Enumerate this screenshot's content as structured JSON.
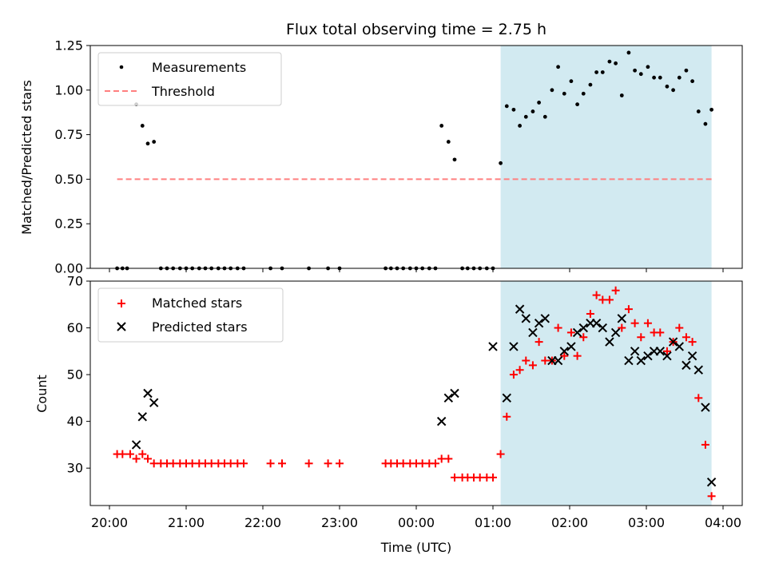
{
  "title": "Flux total observing time = 2.75 h",
  "colors": {
    "measurements": "#000000",
    "threshold": "#ff7f7f",
    "matched": "#ff0000",
    "predicted": "#000000",
    "shade": "#add8e6"
  },
  "chart_data": [
    {
      "type": "scatter",
      "panel": "top",
      "ylabel": "Matched/Predicted stars",
      "xlim": [
        -0.25,
        8.25
      ],
      "ylim": [
        0,
        1.25
      ],
      "yticks": [
        0.0,
        0.25,
        0.5,
        0.75,
        1.0,
        1.25
      ],
      "ytick_labels": [
        "0.00",
        "0.25",
        "0.50",
        "0.75",
        "1.00",
        "1.25"
      ],
      "grid": false,
      "legend_position": "upper-left",
      "shaded_span": [
        5.1,
        7.85
      ],
      "threshold": {
        "name": "Threshold",
        "y": 0.5,
        "x": [
          0.1,
          7.85
        ]
      },
      "series": [
        {
          "name": "Measurements",
          "x": [
            0.1,
            0.17,
            0.23,
            0.35,
            0.43,
            0.5,
            0.58,
            0.67,
            0.75,
            0.83,
            0.92,
            1.0,
            1.08,
            1.17,
            1.25,
            1.33,
            1.42,
            1.5,
            1.58,
            1.67,
            1.75,
            2.1,
            2.25,
            2.6,
            2.85,
            3.0,
            3.6,
            3.67,
            3.75,
            3.83,
            3.92,
            4.0,
            4.08,
            4.17,
            4.25,
            4.33,
            4.42,
            4.5,
            4.6,
            4.67,
            4.75,
            4.83,
            4.92,
            5.0,
            5.1,
            5.18,
            5.27,
            5.35,
            5.43,
            5.52,
            5.6,
            5.68,
            5.77,
            5.85,
            5.93,
            6.02,
            6.1,
            6.18,
            6.27,
            6.35,
            6.43,
            6.52,
            6.6,
            6.68,
            6.77,
            6.85,
            6.93,
            7.02,
            7.1,
            7.18,
            7.27,
            7.35,
            7.43,
            7.52,
            7.6,
            7.68,
            7.77,
            7.85
          ],
          "y": [
            0,
            0,
            0,
            0.92,
            0.8,
            0.7,
            0.71,
            0,
            0,
            0,
            0,
            0,
            0,
            0,
            0,
            0,
            0,
            0,
            0,
            0,
            0,
            0,
            0,
            0,
            0,
            0,
            0,
            0,
            0,
            0,
            0,
            0,
            0,
            0,
            0,
            0.8,
            0.71,
            0.61,
            0,
            0,
            0,
            0,
            0,
            0,
            0.59,
            0.91,
            0.89,
            0.8,
            0.85,
            0.88,
            0.93,
            0.85,
            1.0,
            1.13,
            0.98,
            1.05,
            0.92,
            0.98,
            1.03,
            1.1,
            1.1,
            1.16,
            1.15,
            0.97,
            1.21,
            1.11,
            1.09,
            1.13,
            1.07,
            1.07,
            1.02,
            1.0,
            1.07,
            1.11,
            1.05,
            0.88,
            0.81,
            0.89
          ]
        }
      ]
    },
    {
      "type": "scatter",
      "panel": "bottom",
      "xlabel": "Time (UTC)",
      "ylabel": "Count",
      "xlim": [
        -0.25,
        8.25
      ],
      "ylim": [
        22,
        70
      ],
      "xticks": [
        0,
        1,
        2,
        3,
        4,
        5,
        6,
        7,
        8
      ],
      "xtick_labels": [
        "20:00",
        "21:00",
        "22:00",
        "23:00",
        "00:00",
        "01:00",
        "02:00",
        "03:00",
        "04:00"
      ],
      "yticks": [
        30,
        40,
        50,
        60,
        70
      ],
      "ytick_labels": [
        "30",
        "40",
        "50",
        "60",
        "70"
      ],
      "grid": false,
      "legend_position": "upper-left",
      "shaded_span": [
        5.1,
        7.85
      ],
      "series": [
        {
          "name": "Matched stars",
          "marker": "plus",
          "x": [
            0.1,
            0.17,
            0.27,
            0.35,
            0.43,
            0.5,
            0.58,
            0.67,
            0.75,
            0.83,
            0.92,
            1.0,
            1.08,
            1.17,
            1.25,
            1.33,
            1.42,
            1.5,
            1.58,
            1.67,
            1.75,
            2.1,
            2.25,
            2.6,
            2.85,
            3.0,
            3.6,
            3.67,
            3.75,
            3.83,
            3.92,
            4.0,
            4.08,
            4.17,
            4.25,
            4.33,
            4.42,
            4.5,
            4.6,
            4.67,
            4.75,
            4.83,
            4.92,
            5.0,
            5.1,
            5.18,
            5.27,
            5.35,
            5.43,
            5.52,
            5.6,
            5.68,
            5.77,
            5.85,
            5.93,
            6.02,
            6.1,
            6.18,
            6.27,
            6.35,
            6.43,
            6.52,
            6.6,
            6.68,
            6.77,
            6.85,
            6.93,
            7.02,
            7.1,
            7.18,
            7.27,
            7.35,
            7.43,
            7.52,
            7.6,
            7.68,
            7.77,
            7.85
          ],
          "y": [
            33,
            33,
            33,
            32,
            33,
            32,
            31,
            31,
            31,
            31,
            31,
            31,
            31,
            31,
            31,
            31,
            31,
            31,
            31,
            31,
            31,
            31,
            31,
            31,
            31,
            31,
            31,
            31,
            31,
            31,
            31,
            31,
            31,
            31,
            31,
            32,
            32,
            28,
            28,
            28,
            28,
            28,
            28,
            28,
            33,
            41,
            50,
            51,
            53,
            52,
            57,
            53,
            53,
            60,
            54,
            59,
            54,
            58,
            63,
            67,
            66,
            66,
            68,
            60,
            64,
            61,
            58,
            61,
            59,
            59,
            55,
            57,
            60,
            58,
            57,
            45,
            35,
            24
          ]
        },
        {
          "name": "Predicted stars",
          "marker": "x",
          "x": [
            0.35,
            0.43,
            0.5,
            0.58,
            4.33,
            4.42,
            4.5,
            5.0,
            5.18,
            5.27,
            5.35,
            5.43,
            5.52,
            5.6,
            5.68,
            5.77,
            5.85,
            5.93,
            6.02,
            6.1,
            6.18,
            6.27,
            6.35,
            6.43,
            6.52,
            6.6,
            6.68,
            6.77,
            6.85,
            6.93,
            7.02,
            7.1,
            7.18,
            7.27,
            7.35,
            7.43,
            7.52,
            7.6,
            7.68,
            7.77,
            7.85
          ],
          "y": [
            35,
            41,
            46,
            44,
            40,
            45,
            46,
            56,
            45,
            56,
            64,
            62,
            59,
            61,
            62,
            53,
            53,
            55,
            56,
            59,
            60,
            61,
            61,
            60,
            57,
            59,
            62,
            53,
            55,
            53,
            54,
            55,
            55,
            54,
            57,
            56,
            52,
            54,
            51,
            43,
            27
          ]
        }
      ]
    }
  ]
}
